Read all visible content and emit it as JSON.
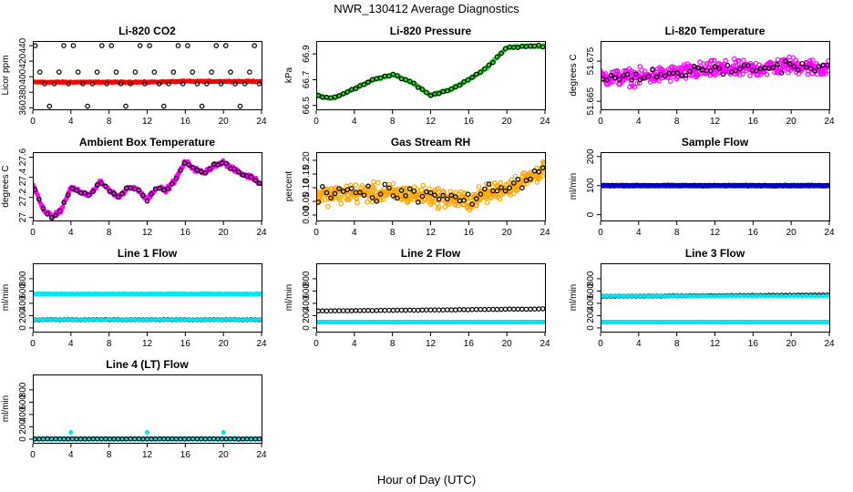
{
  "figure": {
    "title": "NWR_130412  Average Diagnostics",
    "xlabel": "Hour of Day (UTC)"
  },
  "chart_data": [
    {
      "type": "scatter",
      "title": "Li-820 CO2",
      "ylabel": "Licor ppm",
      "xlim": [
        0,
        24
      ],
      "xticks": [
        0,
        4,
        8,
        12,
        16,
        20,
        24
      ],
      "ylim": [
        358,
        446
      ],
      "yticks": [
        360,
        380,
        400,
        420,
        440
      ],
      "series": [
        {
          "color": "#ff0000",
          "marker": "filled",
          "pattern": "smooth",
          "x": [
            0,
            4,
            8,
            12,
            16,
            20,
            24
          ],
          "y": [
            393,
            393,
            393,
            393,
            394,
            394,
            394
          ],
          "noise": 1
        },
        {
          "color": "#000000",
          "marker": "open",
          "pattern": "cycle",
          "x": [
            0,
            24
          ],
          "cycle": [
            440,
            406,
            391,
            362,
            391,
            406,
            440,
            391
          ],
          "step": 0.5
        }
      ]
    },
    {
      "type": "scatter",
      "title": "Li-820 Pressure",
      "ylabel": "kPa",
      "xlim": [
        0,
        24
      ],
      "xticks": [
        0,
        4,
        8,
        12,
        16,
        20,
        24
      ],
      "ylim": [
        66.47,
        67.0
      ],
      "yticks": [
        66.5,
        66.7,
        66.9
      ],
      "series": [
        {
          "color": "#22dd22",
          "marker": "filled",
          "pattern": "smooth",
          "x": [
            0,
            1,
            2,
            4,
            6,
            8,
            10,
            12,
            14,
            16,
            18,
            20,
            22,
            24
          ],
          "y": [
            66.58,
            66.56,
            66.56,
            66.63,
            66.7,
            66.74,
            66.68,
            66.58,
            66.62,
            66.7,
            66.8,
            66.95,
            66.96,
            66.96
          ],
          "noise": 0.01
        },
        {
          "color": "#000000",
          "marker": "open",
          "pattern": "sparse",
          "x": [
            0,
            1,
            2,
            4,
            6,
            8,
            10,
            12,
            14,
            16,
            18,
            20,
            22,
            24
          ],
          "y": [
            66.58,
            66.56,
            66.56,
            66.63,
            66.7,
            66.74,
            66.68,
            66.58,
            66.62,
            66.7,
            66.8,
            66.95,
            66.96,
            66.96
          ],
          "noise": 0.01
        }
      ]
    },
    {
      "type": "scatter",
      "title": "Li-820 Temperature",
      "ylabel": "degrees C",
      "xlim": [
        0,
        24
      ],
      "xticks": [
        0,
        4,
        8,
        12,
        16,
        20,
        24
      ],
      "ylim": [
        51.663,
        51.68
      ],
      "yticks": [
        51.665,
        51.675
      ],
      "ytick_labels": [
        "51.665",
        "51.675"
      ],
      "series": [
        {
          "color": "#ff00ff",
          "marker": "open",
          "pattern": "noisy",
          "x": [
            0,
            4,
            8,
            12,
            16,
            20,
            24
          ],
          "y": [
            51.671,
            51.671,
            51.672,
            51.673,
            51.673,
            51.674,
            51.673
          ],
          "noise": 0.003
        },
        {
          "color": "#000000",
          "marker": "open",
          "pattern": "sparse",
          "x": [
            0,
            4,
            8,
            12,
            16,
            20,
            24
          ],
          "y": [
            51.671,
            51.671,
            51.672,
            51.673,
            51.673,
            51.674,
            51.673
          ],
          "noise": 0.002
        }
      ]
    },
    {
      "type": "scatter",
      "title": "Ambient Box Temperature",
      "ylabel": "degrees C",
      "xlim": [
        0,
        24
      ],
      "xticks": [
        0,
        4,
        8,
        12,
        16,
        20,
        24
      ],
      "ylim": [
        26.97,
        27.65
      ],
      "yticks": [
        27.0,
        27.2,
        27.4,
        27.6
      ],
      "series": [
        {
          "color": "#ff00ff",
          "marker": "filled",
          "pattern": "smooth",
          "x": [
            0,
            1,
            2,
            3,
            4,
            5,
            6,
            7,
            8,
            9,
            10,
            11,
            12,
            13,
            14,
            15,
            16,
            17,
            18,
            19,
            20,
            21,
            22,
            23,
            24
          ],
          "y": [
            27.33,
            27.1,
            27.0,
            27.08,
            27.3,
            27.25,
            27.22,
            27.35,
            27.28,
            27.2,
            27.3,
            27.28,
            27.18,
            27.3,
            27.27,
            27.38,
            27.56,
            27.48,
            27.44,
            27.52,
            27.55,
            27.48,
            27.43,
            27.4,
            27.33
          ],
          "noise": 0.03
        },
        {
          "color": "#000000",
          "marker": "open",
          "pattern": "sparse",
          "x": [
            0,
            1,
            2,
            3,
            4,
            5,
            6,
            7,
            8,
            9,
            10,
            11,
            12,
            13,
            14,
            15,
            16,
            17,
            18,
            19,
            20,
            21,
            22,
            23,
            24
          ],
          "y": [
            27.33,
            27.1,
            27.0,
            27.08,
            27.3,
            27.25,
            27.22,
            27.35,
            27.28,
            27.2,
            27.3,
            27.28,
            27.18,
            27.3,
            27.27,
            27.38,
            27.56,
            27.48,
            27.44,
            27.52,
            27.55,
            27.48,
            27.43,
            27.4,
            27.33
          ],
          "noise": 0.02
        }
      ]
    },
    {
      "type": "scatter",
      "title": "Gas Stream RH",
      "ylabel": "percent",
      "xlim": [
        0,
        24
      ],
      "xticks": [
        0,
        4,
        8,
        12,
        16,
        20,
        24
      ],
      "ylim": [
        -0.02,
        0.23
      ],
      "yticks": [
        0.0,
        0.05,
        0.1,
        0.15,
        0.2
      ],
      "ytick_labels": [
        "0.00",
        "0.05",
        "0.10",
        "0.15",
        "0.20"
      ],
      "series": [
        {
          "color": "#ffa500",
          "marker": "open",
          "pattern": "noisy",
          "x": [
            0,
            4,
            8,
            12,
            16,
            18,
            20,
            22,
            24
          ],
          "y": [
            0.07,
            0.08,
            0.08,
            0.07,
            0.05,
            0.08,
            0.1,
            0.13,
            0.17
          ],
          "noise": 0.05
        },
        {
          "color": "#000000",
          "marker": "open",
          "pattern": "sparse",
          "x": [
            0,
            4,
            8,
            12,
            16,
            18,
            20,
            22,
            24
          ],
          "y": [
            0.07,
            0.08,
            0.08,
            0.07,
            0.05,
            0.08,
            0.1,
            0.13,
            0.17
          ],
          "noise": 0.04
        }
      ]
    },
    {
      "type": "scatter",
      "title": "Sample Flow",
      "ylabel": "ml/min",
      "xlim": [
        0,
        24
      ],
      "xticks": [
        0,
        4,
        8,
        12,
        16,
        20,
        24
      ],
      "ylim": [
        -20,
        215
      ],
      "yticks": [
        0,
        100,
        200
      ],
      "series": [
        {
          "color": "#000000",
          "marker": "open",
          "pattern": "smooth",
          "x": [
            0,
            24
          ],
          "y": [
            100,
            100
          ],
          "noise": 1.5
        },
        {
          "color": "#0000cc",
          "marker": "filled",
          "pattern": "smooth",
          "x": [
            0,
            24
          ],
          "y": [
            100,
            100
          ],
          "noise": 1
        }
      ]
    },
    {
      "type": "scatter",
      "title": "Line 1 Flow",
      "ylabel": "ml/min",
      "xlim": [
        0,
        24
      ],
      "xticks": [
        0,
        4,
        8,
        12,
        16,
        20,
        24
      ],
      "ylim": [
        -60,
        1050
      ],
      "yticks": [
        0,
        200,
        400,
        600,
        800
      ],
      "series": [
        {
          "color": "#00e5ee",
          "marker": "filled",
          "pattern": "smooth",
          "x": [
            0,
            24
          ],
          "y": [
            550,
            550
          ],
          "noise": 8
        },
        {
          "color": "#000000",
          "marker": "open",
          "pattern": "sparse",
          "x": [
            0,
            24
          ],
          "y": [
            135,
            135
          ],
          "noise": 3
        },
        {
          "color": "#00e5ee",
          "marker": "filled",
          "pattern": "sparse",
          "x": [
            0,
            24
          ],
          "y": [
            135,
            135
          ],
          "noise": 3
        }
      ]
    },
    {
      "type": "scatter",
      "title": "Line 2 Flow",
      "ylabel": "ml/min",
      "xlim": [
        0,
        24
      ],
      "xticks": [
        0,
        4,
        8,
        12,
        16,
        20,
        24
      ],
      "ylim": [
        -60,
        1050
      ],
      "yticks": [
        0,
        200,
        400,
        600,
        800
      ],
      "series": [
        {
          "color": "#00e5ee",
          "marker": "filled",
          "pattern": "smooth",
          "x": [
            0,
            24
          ],
          "y": [
            95,
            95
          ],
          "noise": 3
        },
        {
          "color": "#000000",
          "marker": "open",
          "pattern": "sparse",
          "x": [
            0,
            24
          ],
          "y": [
            275,
            310
          ],
          "noise": 4
        }
      ]
    },
    {
      "type": "scatter",
      "title": "Line 3 Flow",
      "ylabel": "ml/min",
      "xlim": [
        0,
        24
      ],
      "xticks": [
        0,
        4,
        8,
        12,
        16,
        20,
        24
      ],
      "ylim": [
        -60,
        1050
      ],
      "yticks": [
        0,
        200,
        400,
        600,
        800
      ],
      "series": [
        {
          "color": "#00e5ee",
          "marker": "filled",
          "pattern": "smooth",
          "x": [
            0,
            24
          ],
          "y": [
            95,
            95
          ],
          "noise": 3
        },
        {
          "color": "#000000",
          "marker": "open",
          "pattern": "sparse",
          "x": [
            0,
            24
          ],
          "y": [
            515,
            535
          ],
          "noise": 4
        },
        {
          "color": "#00e5ee",
          "marker": "filled",
          "pattern": "sparse",
          "x": [
            0,
            24
          ],
          "y": [
            520,
            520
          ],
          "noise": 4
        }
      ]
    },
    {
      "type": "scatter",
      "title": "Line 4 (LT) Flow",
      "ylabel": "ml/min",
      "xlim": [
        0,
        24
      ],
      "xticks": [
        0,
        4,
        8,
        12,
        16,
        20,
        24
      ],
      "ylim": [
        -60,
        1050
      ],
      "yticks": [
        0,
        200,
        400,
        600,
        800
      ],
      "series": [
        {
          "color": "#00e5ee",
          "marker": "filled",
          "pattern": "smooth",
          "x": [
            0,
            24
          ],
          "y": [
            3,
            3
          ],
          "noise": 2
        },
        {
          "color": "#000000",
          "marker": "open",
          "pattern": "sparse",
          "x": [
            0,
            24
          ],
          "y": [
            3,
            3
          ],
          "noise": 2
        },
        {
          "color": "#00e5ee",
          "marker": "filled",
          "pattern": "spikes",
          "x": [
            4,
            12,
            20
          ],
          "y": [
            110,
            110,
            110
          ],
          "noise": 0
        }
      ]
    }
  ]
}
